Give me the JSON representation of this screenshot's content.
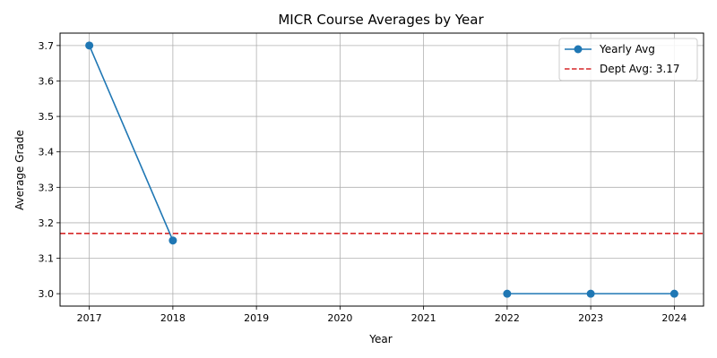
{
  "chart_data": {
    "type": "line",
    "title": "MICR Course Averages by Year",
    "xlabel": "Year",
    "ylabel": "Average Grade",
    "x_ticks": [
      2017,
      2018,
      2019,
      2020,
      2021,
      2022,
      2023,
      2024
    ],
    "y_ticks": [
      "3.0",
      "3.1",
      "3.2",
      "3.3",
      "3.4",
      "3.5",
      "3.6",
      "3.7"
    ],
    "xlim": [
      2016.65,
      2024.35
    ],
    "ylim": [
      2.965,
      3.735
    ],
    "grid": true,
    "legend_position": "top-right",
    "series": [
      {
        "name": "Yearly Avg",
        "color": "#1f77b4",
        "marker": "circle",
        "segments": [
          [
            {
              "x": 2017,
              "y": 3.7
            },
            {
              "x": 2018,
              "y": 3.15
            }
          ],
          [
            {
              "x": 2022,
              "y": 3.0
            },
            {
              "x": 2023,
              "y": 3.0
            },
            {
              "x": 2024,
              "y": 3.0
            }
          ]
        ]
      }
    ],
    "reference_lines": [
      {
        "name": "Dept Avg: 3.17",
        "y": 3.17,
        "color": "#d62728",
        "style": "dashed"
      }
    ]
  }
}
